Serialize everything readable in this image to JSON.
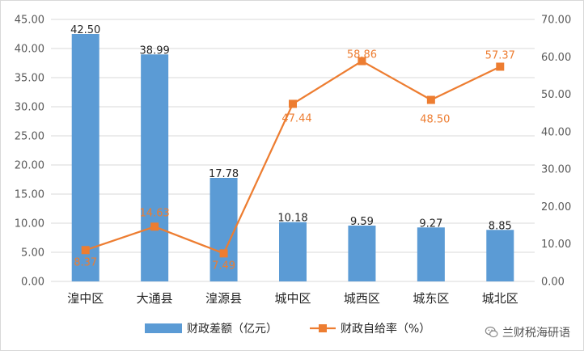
{
  "chart_data": {
    "type": "bar+line",
    "categories": [
      "湟中区",
      "大通县",
      "湟源县",
      "城中区",
      "城西区",
      "城东区",
      "城北区"
    ],
    "series": [
      {
        "name": "财政差额（亿元）",
        "type": "bar",
        "axis": "left",
        "values": [
          42.5,
          38.99,
          17.78,
          10.18,
          9.59,
          9.27,
          8.85
        ],
        "labels": [
          "42.50",
          "38.99",
          "17.78",
          "10.18",
          "9.59",
          "9.27",
          "8.85"
        ],
        "color": "#5b9bd5"
      },
      {
        "name": "财政自给率（%）",
        "type": "line",
        "axis": "right",
        "values": [
          8.37,
          14.63,
          7.49,
          47.44,
          58.86,
          48.5,
          57.37
        ],
        "labels": [
          "8.37",
          "14.63",
          "7.49",
          "47.44",
          "58.86",
          "48.50",
          "57.37"
        ],
        "color": "#ed7d31"
      }
    ],
    "left_axis": {
      "ylim": [
        0,
        45
      ],
      "ticks": [
        "0.00",
        "5.00",
        "10.00",
        "15.00",
        "20.00",
        "25.00",
        "30.00",
        "35.00",
        "40.00",
        "45.00"
      ]
    },
    "right_axis": {
      "ylim": [
        0,
        70
      ],
      "ticks": [
        "0.00",
        "10.00",
        "20.00",
        "30.00",
        "40.00",
        "50.00",
        "60.00",
        "70.00"
      ]
    },
    "grid": true,
    "legend_position": "bottom"
  },
  "watermark": {
    "text": "兰财税海研语",
    "icon": "wechat-icon"
  }
}
